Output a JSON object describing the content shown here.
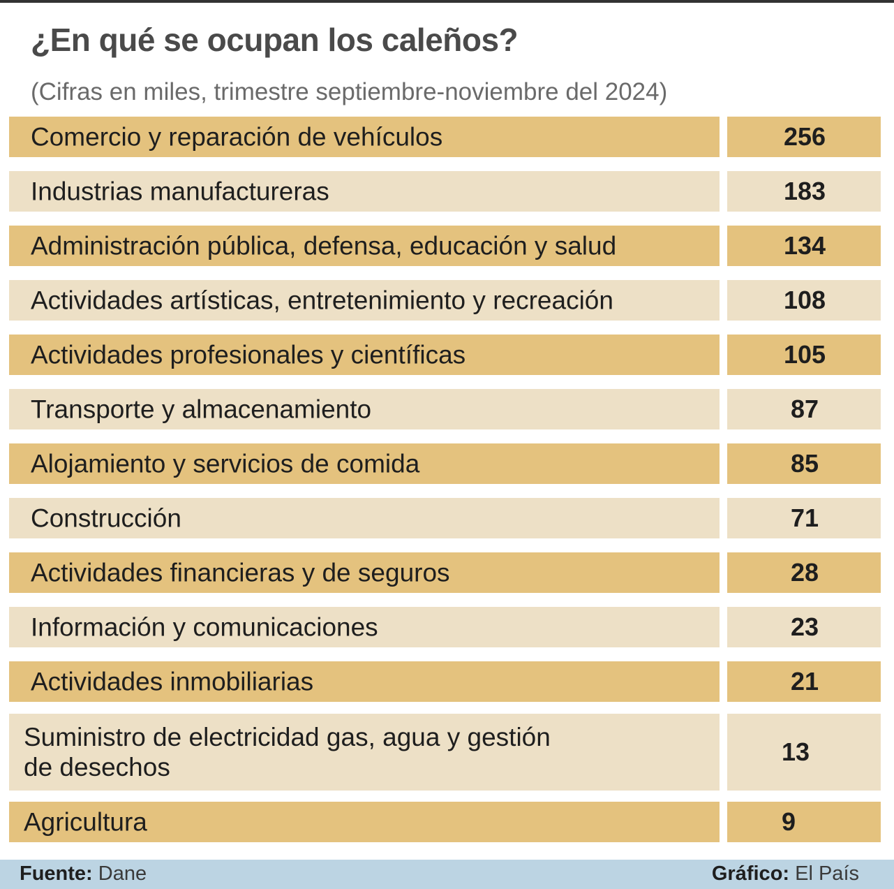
{
  "chart_data": {
    "type": "table",
    "title": "¿En qué se ocupan los caleños?",
    "subtitle": "(Cifras en miles, trimestre septiembre-noviembre del 2024)",
    "categories": [
      "Comercio y reparación de vehículos",
      "Industrias manufactureras",
      "Administración pública, defensa, educación y salud",
      "Actividades artísticas, entretenimiento y recreación",
      "Actividades profesionales y científicas",
      "Transporte y almacenamiento",
      "Alojamiento y servicios de comida",
      "Construcción",
      "Actividades financieras y de seguros",
      "Información y comunicaciones",
      "Actividades inmobiliarias",
      "Suministro de electricidad gas, agua y gestión de desechos",
      "Agricultura"
    ],
    "values": [
      256,
      183,
      134,
      108,
      105,
      87,
      85,
      71,
      28,
      23,
      21,
      13,
      9
    ],
    "colors": {
      "dark_row": "#e4c27e",
      "light_row": "#ede0c6",
      "footer": "#bcd4e3"
    }
  },
  "footer": {
    "source_label": "Fuente:",
    "source_value": "Dane",
    "credit_label": "Gráfico:",
    "credit_value": "El País"
  }
}
